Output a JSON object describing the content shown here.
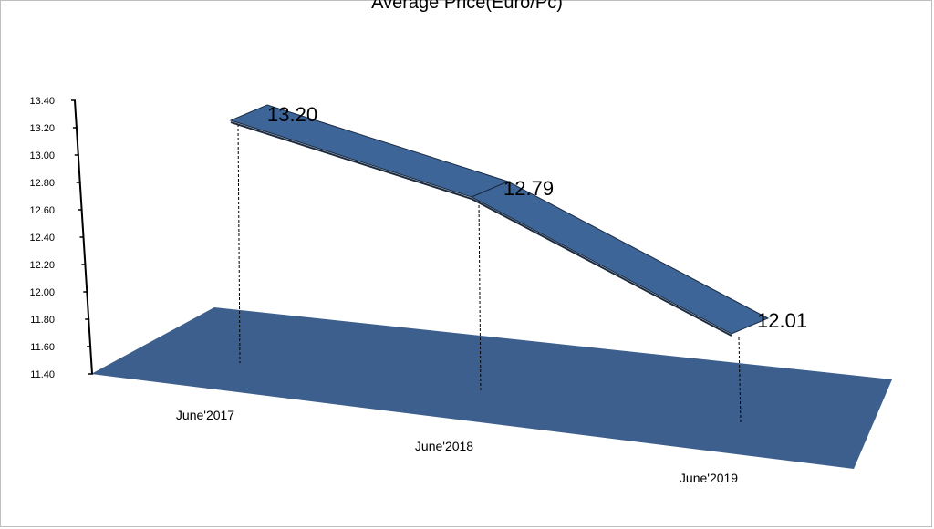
{
  "chart_data": {
    "type": "line",
    "title": "Average Price(Euro/Pc)",
    "categories": [
      "June'2017",
      "June'2018",
      "June'2019"
    ],
    "series": [
      {
        "values": [
          13.2,
          12.79,
          12.01
        ],
        "data_labels": [
          "13.20",
          "12.79",
          "12.01"
        ]
      }
    ],
    "ylim": [
      11.4,
      13.4
    ],
    "yticks": [
      "11.40",
      "11.60",
      "11.80",
      "12.00",
      "12.20",
      "12.40",
      "12.60",
      "12.80",
      "13.00",
      "13.20",
      "13.40"
    ],
    "xlabel": "",
    "ylabel": "",
    "grid": false,
    "legend": "none",
    "colors": {
      "ribbon": "#3d6598",
      "floor": "#3d5f8d",
      "outline": "#1a2a40"
    }
  }
}
